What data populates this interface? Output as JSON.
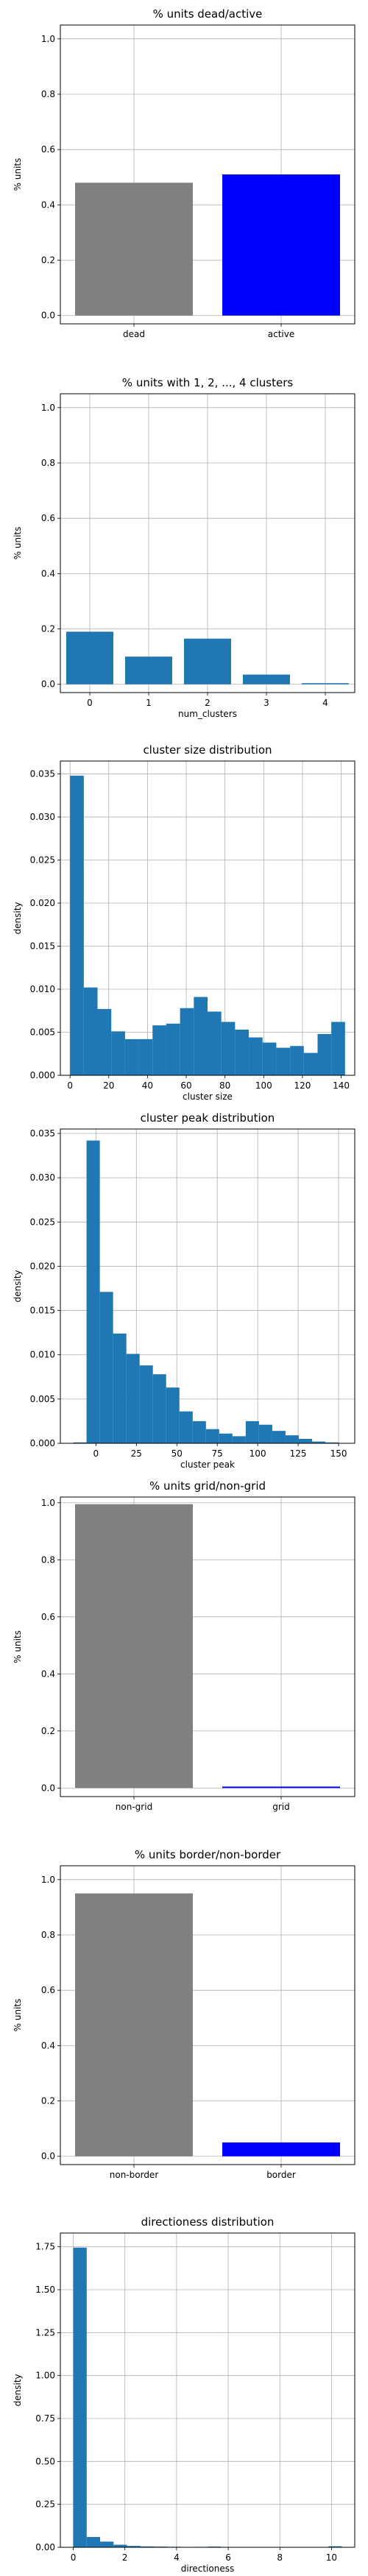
{
  "chart_data": [
    {
      "type": "bar",
      "title": "% units dead/active",
      "xlabel": "",
      "ylabel": "% units",
      "categories": [
        "dead",
        "active"
      ],
      "values": [
        0.48,
        0.51
      ],
      "colors": [
        "#808080",
        "#0000ff"
      ],
      "ylim": [
        -0.03,
        1.05
      ],
      "yticks": [
        "0.0",
        "0.2",
        "0.4",
        "0.6",
        "0.8",
        "1.0"
      ],
      "grid": true
    },
    {
      "type": "bar",
      "title": "% units with 1, 2, ..., 4 clusters",
      "xlabel": "num_clusters",
      "ylabel": "% units",
      "categories": [
        "0",
        "1",
        "2",
        "3",
        "4"
      ],
      "values": [
        0.19,
        0.1,
        0.165,
        0.035,
        0.004
      ],
      "colors": [
        "#1f77b4"
      ],
      "ylim": [
        -0.03,
        1.05
      ],
      "yticks": [
        "0.0",
        "0.2",
        "0.4",
        "0.6",
        "0.8",
        "1.0"
      ],
      "grid": true
    },
    {
      "type": "bar",
      "title": "cluster size distribution",
      "xlabel": "cluster size",
      "ylabel": "density",
      "bins_start": 0,
      "bin_width": 7.1,
      "values": [
        0.0348,
        0.0102,
        0.0077,
        0.0051,
        0.0042,
        0.0042,
        0.0058,
        0.006,
        0.0078,
        0.0091,
        0.0074,
        0.0062,
        0.0053,
        0.0044,
        0.0038,
        0.0032,
        0.0034,
        0.0026,
        0.0048,
        0.0062
      ],
      "colors": [
        "#1f77b4"
      ],
      "xlim": [
        -5,
        147
      ],
      "ylim": [
        0,
        0.0365
      ],
      "xticks": [
        0,
        20,
        40,
        60,
        80,
        100,
        120,
        140
      ],
      "yticks": [
        "0.000",
        "0.005",
        "0.010",
        "0.015",
        "0.020",
        "0.025",
        "0.030",
        "0.035"
      ],
      "grid": true
    },
    {
      "type": "bar",
      "title": "cluster peak distribution",
      "xlabel": "cluster peak",
      "ylabel": "density",
      "bins_start": -14,
      "bin_width": 8.2,
      "values": [
        0.0001,
        0.0342,
        0.0171,
        0.0124,
        0.0101,
        0.0088,
        0.0078,
        0.0063,
        0.0036,
        0.0025,
        0.0016,
        0.0011,
        0.0008,
        0.0025,
        0.0021,
        0.0014,
        0.0009,
        0.0005,
        0.0002,
        0.0001
      ],
      "colors": [
        "#1f77b4"
      ],
      "xlim": [
        -22,
        160
      ],
      "ylim": [
        0,
        0.0355
      ],
      "xticks": [
        0,
        25,
        50,
        75,
        100,
        125,
        150
      ],
      "yticks": [
        "0.000",
        "0.005",
        "0.010",
        "0.015",
        "0.020",
        "0.025",
        "0.030",
        "0.035"
      ],
      "grid": true
    },
    {
      "type": "bar",
      "title": "% units grid/non-grid",
      "xlabel": "",
      "ylabel": "% units",
      "categories": [
        "non-grid",
        "grid"
      ],
      "values": [
        0.995,
        0.005
      ],
      "colors": [
        "#808080",
        "#0000ff"
      ],
      "ylim": [
        -0.03,
        1.02
      ],
      "yticks": [
        "0.0",
        "0.2",
        "0.4",
        "0.6",
        "0.8",
        "1.0"
      ],
      "grid": true
    },
    {
      "type": "bar",
      "title": "% units border/non-border",
      "xlabel": "",
      "ylabel": "% units",
      "categories": [
        "non-border",
        "border"
      ],
      "values": [
        0.95,
        0.05
      ],
      "colors": [
        "#808080",
        "#0000ff"
      ],
      "ylim": [
        -0.03,
        1.05
      ],
      "yticks": [
        "0.0",
        "0.2",
        "0.4",
        "0.6",
        "0.8",
        "1.0"
      ],
      "grid": true
    },
    {
      "type": "bar",
      "title": "directioness distribution",
      "xlabel": "directioness",
      "ylabel": "density",
      "bins_start": 0,
      "bin_width": 0.52,
      "values": [
        1.745,
        0.06,
        0.033,
        0.015,
        0.008,
        0.005,
        0.004,
        0.003,
        0.002,
        0.0025,
        0.004,
        0.002,
        0.001,
        0.0005,
        0.001,
        0.001,
        0.0005,
        0.0005,
        0.0005,
        0.006
      ],
      "colors": [
        "#1f77b4"
      ],
      "xlim": [
        -0.5,
        10.9
      ],
      "ylim": [
        0,
        1.83
      ],
      "xticks": [
        0,
        2,
        4,
        6,
        8,
        10
      ],
      "yticks": [
        "0.00",
        "0.25",
        "0.50",
        "0.75",
        "1.00",
        "1.25",
        "1.50",
        "1.75"
      ],
      "grid": true
    }
  ]
}
